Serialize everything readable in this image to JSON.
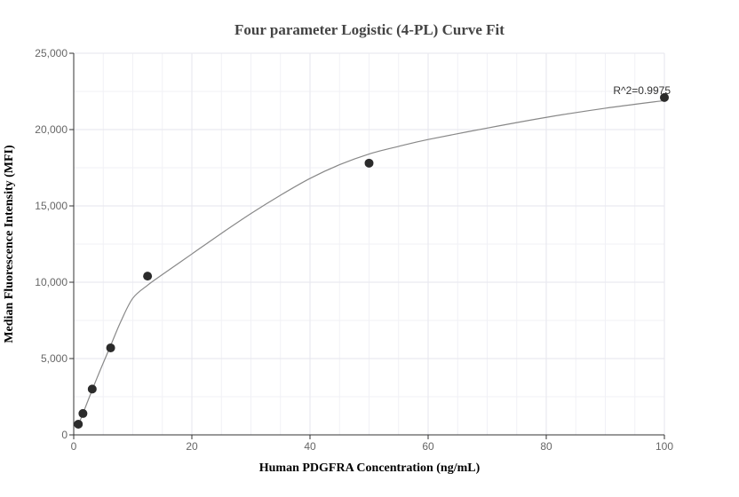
{
  "chart_data": {
    "type": "scatter",
    "title": "Four parameter Logistic (4-PL) Curve Fit",
    "xlabel": "Human PDGFRA Concentration (ng/mL)",
    "ylabel": "Median Fluorescence Intensity (MFI)",
    "xlim": [
      0,
      100
    ],
    "ylim": [
      0,
      25000
    ],
    "x_ticks": [
      0,
      20,
      40,
      60,
      80,
      100
    ],
    "x_tick_labels": [
      "0",
      "20",
      "40",
      "60",
      "80",
      "100"
    ],
    "y_ticks": [
      0,
      5000,
      10000,
      15000,
      20000,
      25000
    ],
    "y_tick_labels": [
      "0",
      "5,000",
      "10,000",
      "15,000",
      "20,000",
      "25,000"
    ],
    "grid": true,
    "series": [
      {
        "type": "scatter",
        "x": [
          0.78,
          1.56,
          3.13,
          6.25,
          12.5,
          50,
          100
        ],
        "y": [
          700,
          1400,
          3000,
          5700,
          10400,
          17800,
          22100
        ]
      },
      {
        "type": "line",
        "x": [
          0.78,
          1.56,
          3.13,
          4.5,
          6.25,
          8,
          10,
          12.5,
          15,
          20,
          25,
          30,
          35,
          40,
          45,
          50,
          55,
          60,
          70,
          80,
          90,
          100
        ],
        "y": [
          650,
          1400,
          2950,
          4250,
          5850,
          7450,
          8950,
          9800,
          10500,
          11850,
          13200,
          14500,
          15700,
          16800,
          17700,
          18400,
          18900,
          19350,
          20100,
          20800,
          21400,
          21900
        ]
      }
    ],
    "annotations": [
      {
        "text": "R^2=0.9975",
        "x": 100,
        "y": 22100
      }
    ]
  }
}
